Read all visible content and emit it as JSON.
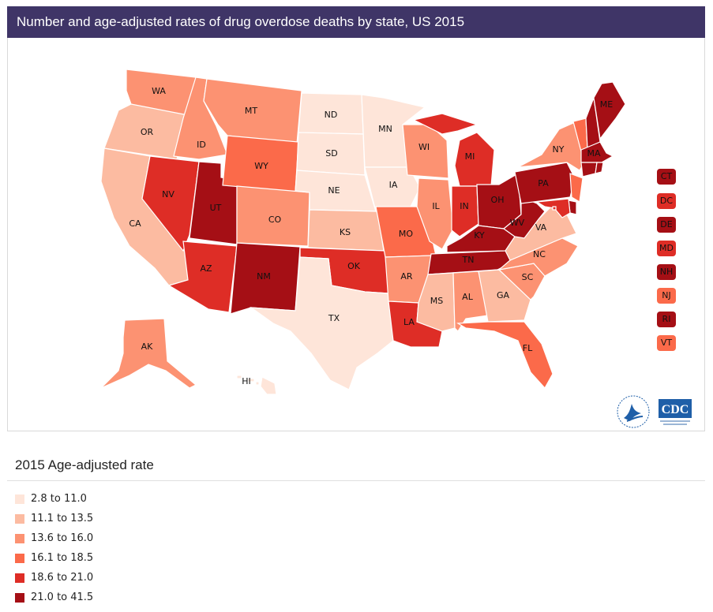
{
  "title": "Number and age-adjusted rates of drug overdose deaths by state, US 2015",
  "legend": {
    "title": "2015 Age-adjusted rate",
    "bins": [
      {
        "label": "2.8 to 11.0",
        "color": "#fee5d9"
      },
      {
        "label": "11.1 to 13.5",
        "color": "#fcbba1"
      },
      {
        "label": "13.6 to 16.0",
        "color": "#fc9272"
      },
      {
        "label": "16.1 to 18.5",
        "color": "#fb6a4a"
      },
      {
        "label": "18.6 to 21.0",
        "color": "#de2d26"
      },
      {
        "label": "21.0 to 41.5",
        "color": "#a50f15"
      }
    ]
  },
  "states": {
    "WA": 3,
    "OR": 2,
    "CA": 2,
    "ID": 3,
    "NV": 5,
    "AZ": 5,
    "UT": 6,
    "MT": 3,
    "WY": 4,
    "CO": 3,
    "NM": 6,
    "ND": 1,
    "SD": 1,
    "NE": 1,
    "KS": 2,
    "OK": 5,
    "TX": 1,
    "MN": 1,
    "IA": 1,
    "MO": 4,
    "AR": 3,
    "LA": 5,
    "WI": 3,
    "IL": 3,
    "MI": 5,
    "IN": 5,
    "OH": 6,
    "KY": 6,
    "TN": 6,
    "MS": 2,
    "AL": 3,
    "GA": 2,
    "FL": 4,
    "SC": 3,
    "NC": 3,
    "VA": 2,
    "WV": 6,
    "PA": 6,
    "NY": 3,
    "ME": 6,
    "AK": 3,
    "HI": 1,
    "CT": 6,
    "DC": 5,
    "DE": 6,
    "MD": 5,
    "NH": 6,
    "NJ": 4,
    "RI": 6,
    "VT": 4,
    "MA": 6
  },
  "small_states": [
    "CT",
    "DC",
    "DE",
    "MD",
    "NH",
    "NJ",
    "RI",
    "VT"
  ],
  "logos": {
    "hhs": "hhs-eagle-logo",
    "cdc": "CDC"
  }
}
